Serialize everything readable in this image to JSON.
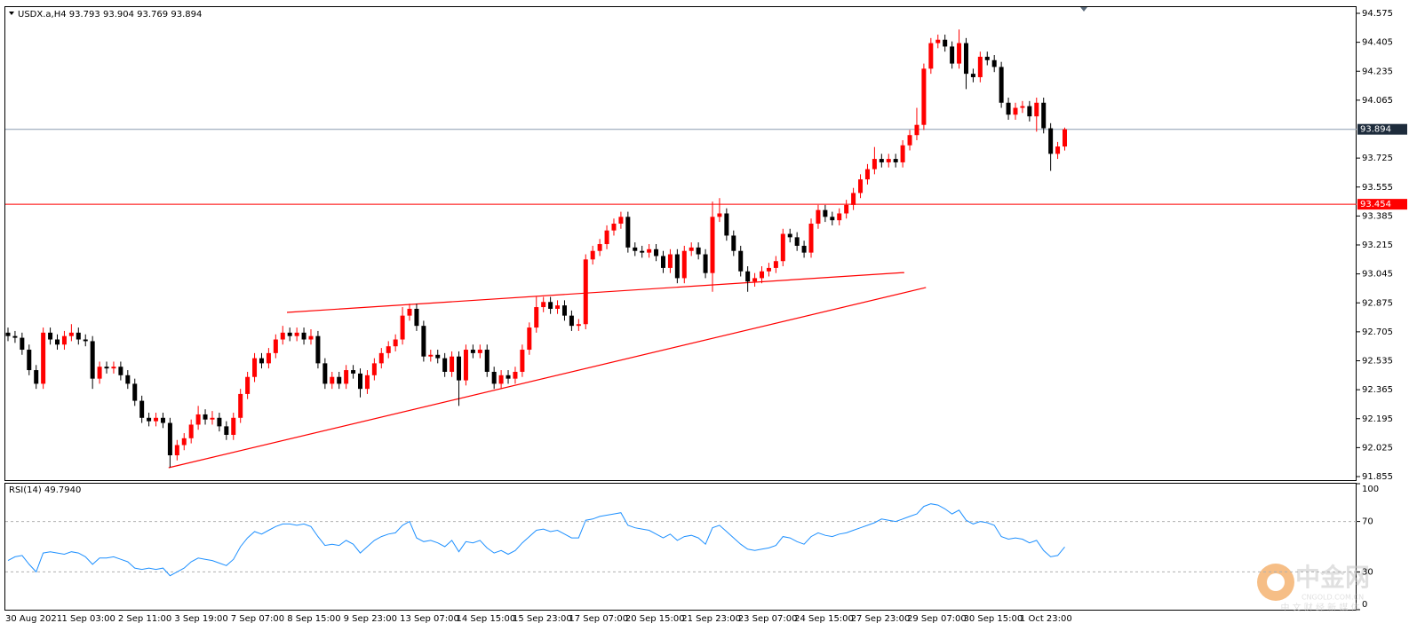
{
  "chart_data": {
    "type": "candlestick",
    "symbol": "USDX.a,H4",
    "categories": [
      "30 Aug 2021",
      null,
      null,
      null,
      null,
      null,
      null,
      null,
      "1 Sep 03:00",
      null,
      null,
      null,
      null,
      null,
      null,
      null,
      "2 Sep 11:00",
      null,
      null,
      null,
      null,
      null,
      null,
      null,
      "3 Sep 19:00",
      null,
      null,
      null,
      null,
      null,
      null,
      null,
      "7 Sep 07:00",
      null,
      null,
      null,
      null,
      null,
      null,
      null,
      "8 Sep 15:00",
      null,
      null,
      null,
      null,
      null,
      null,
      null,
      "9 Sep 23:00",
      null,
      null,
      null,
      null,
      null,
      null,
      null,
      "13 Sep 07:00",
      null,
      null,
      null,
      null,
      null,
      null,
      null,
      "14 Sep 15:00",
      null,
      null,
      null,
      null,
      null,
      null,
      null,
      "15 Sep 23:00",
      null,
      null,
      null,
      null,
      null,
      null,
      null,
      "17 Sep 07:00",
      null,
      null,
      null,
      null,
      null,
      null,
      null,
      "20 Sep 15:00",
      null,
      null,
      null,
      null,
      null,
      null,
      null,
      "21 Sep 23:00",
      null,
      null,
      null,
      null,
      null,
      null,
      null,
      "23 Sep 07:00",
      null,
      null,
      null,
      null,
      null,
      null,
      null,
      "24 Sep 15:00",
      null,
      null,
      null,
      null,
      null,
      null,
      null,
      "27 Sep 23:00",
      null,
      null,
      null,
      null,
      null,
      null,
      null,
      "29 Sep 07:00",
      null,
      null,
      null,
      null,
      null,
      null,
      null,
      "30 Sep 15:00",
      null,
      null,
      null,
      null,
      null,
      null,
      null,
      "1 Oct 23:00",
      null,
      null,
      null,
      null,
      null,
      null
    ],
    "open": [
      92.7,
      92.68,
      92.67,
      92.6,
      92.48,
      92.4,
      92.7,
      92.66,
      92.63,
      92.68,
      92.7,
      92.66,
      92.65,
      92.43,
      92.5,
      92.49,
      92.5,
      92.45,
      92.4,
      92.3,
      92.2,
      92.18,
      92.2,
      92.17,
      91.98,
      92.04,
      92.08,
      92.16,
      92.22,
      92.19,
      92.2,
      92.15,
      92.1,
      92.2,
      92.34,
      92.44,
      92.55,
      92.52,
      92.58,
      92.66,
      92.7,
      92.68,
      92.7,
      92.66,
      92.68,
      92.52,
      92.4,
      92.44,
      92.4,
      92.48,
      92.46,
      92.37,
      92.45,
      92.52,
      92.58,
      92.62,
      92.66,
      92.8,
      92.84,
      92.74,
      92.56,
      92.57,
      92.55,
      92.47,
      92.56,
      92.42,
      92.6,
      92.58,
      92.6,
      92.47,
      92.4,
      92.45,
      92.43,
      92.47,
      92.6,
      92.73,
      92.85,
      92.88,
      92.84,
      92.86,
      92.8,
      92.74,
      92.75,
      93.13,
      93.18,
      93.22,
      93.3,
      93.34,
      93.38,
      93.2,
      93.18,
      93.17,
      93.19,
      93.15,
      93.08,
      93.16,
      93.02,
      93.18,
      93.2,
      93.16,
      93.05,
      93.38,
      93.4,
      93.27,
      93.18,
      93.06,
      93.0,
      93.02,
      93.06,
      93.08,
      93.12,
      93.28,
      93.26,
      93.21,
      93.17,
      93.34,
      93.42,
      93.38,
      93.36,
      93.4,
      93.45,
      93.52,
      93.6,
      93.66,
      93.72,
      93.7,
      93.72,
      93.7,
      93.8,
      93.86,
      93.92,
      94.25,
      94.4,
      94.42,
      94.38,
      94.28,
      94.4,
      94.22,
      94.2,
      94.32,
      94.3,
      94.26,
      94.05,
      93.98,
      94.02,
      94.03,
      93.97,
      94.05,
      93.9,
      93.75,
      93.793
    ],
    "high": [
      92.73,
      92.71,
      92.7,
      92.63,
      92.51,
      92.73,
      92.73,
      92.69,
      92.71,
      92.75,
      92.73,
      92.69,
      92.68,
      92.53,
      92.53,
      92.53,
      92.53,
      92.48,
      92.43,
      92.33,
      92.23,
      92.23,
      92.23,
      92.2,
      92.07,
      92.11,
      92.19,
      92.27,
      92.25,
      92.24,
      92.23,
      92.18,
      92.23,
      92.37,
      92.47,
      92.58,
      92.58,
      92.61,
      92.69,
      92.74,
      92.73,
      92.73,
      92.73,
      92.72,
      92.71,
      92.55,
      92.47,
      92.47,
      92.51,
      92.51,
      92.49,
      92.48,
      92.55,
      92.61,
      92.65,
      92.69,
      92.85,
      92.87,
      92.87,
      92.77,
      92.6,
      92.6,
      92.58,
      92.59,
      92.59,
      92.63,
      92.63,
      92.63,
      92.63,
      92.5,
      92.48,
      92.48,
      92.5,
      92.63,
      92.76,
      92.91,
      92.91,
      92.91,
      92.89,
      92.89,
      92.83,
      92.78,
      93.16,
      93.21,
      93.25,
      93.33,
      93.37,
      93.41,
      93.41,
      93.23,
      93.21,
      93.22,
      93.22,
      93.18,
      93.19,
      93.19,
      93.21,
      93.23,
      93.23,
      93.19,
      93.47,
      93.49,
      93.43,
      93.3,
      93.21,
      93.09,
      93.05,
      93.09,
      93.11,
      93.15,
      93.31,
      93.31,
      93.29,
      93.24,
      93.37,
      93.45,
      93.45,
      93.41,
      93.43,
      93.48,
      93.55,
      93.63,
      93.69,
      93.79,
      93.75,
      93.75,
      93.75,
      93.83,
      93.89,
      94.02,
      94.28,
      94.43,
      94.45,
      94.45,
      94.41,
      94.48,
      94.43,
      94.25,
      94.35,
      94.35,
      94.33,
      94.29,
      94.08,
      94.05,
      94.06,
      94.06,
      94.08,
      94.08,
      93.93,
      93.82,
      93.904
    ],
    "low": [
      92.65,
      92.64,
      92.57,
      92.45,
      92.37,
      92.37,
      92.63,
      92.6,
      92.6,
      92.65,
      92.63,
      92.62,
      92.37,
      92.4,
      92.46,
      92.46,
      92.42,
      92.37,
      92.27,
      92.17,
      92.15,
      92.15,
      92.14,
      91.91,
      91.95,
      92.01,
      92.05,
      92.13,
      92.16,
      92.16,
      92.12,
      92.07,
      92.07,
      92.17,
      92.31,
      92.41,
      92.49,
      92.49,
      92.55,
      92.63,
      92.65,
      92.65,
      92.63,
      92.63,
      92.49,
      92.37,
      92.37,
      92.37,
      92.37,
      92.43,
      92.32,
      92.34,
      92.42,
      92.49,
      92.55,
      92.59,
      92.63,
      92.77,
      92.71,
      92.53,
      92.53,
      92.52,
      92.44,
      92.44,
      92.27,
      92.39,
      92.55,
      92.55,
      92.44,
      92.37,
      92.37,
      92.4,
      92.4,
      92.44,
      92.57,
      92.7,
      92.82,
      92.81,
      92.81,
      92.77,
      92.71,
      92.71,
      92.72,
      93.1,
      93.15,
      93.19,
      93.27,
      93.31,
      93.17,
      93.15,
      93.14,
      93.14,
      93.12,
      93.05,
      93.05,
      92.99,
      92.99,
      93.15,
      93.13,
      93.02,
      92.94,
      93.35,
      93.24,
      93.15,
      93.03,
      92.94,
      92.97,
      92.99,
      93.03,
      93.05,
      93.09,
      93.23,
      93.18,
      93.14,
      93.14,
      93.31,
      93.35,
      93.33,
      93.33,
      93.37,
      93.42,
      93.49,
      93.57,
      93.63,
      93.67,
      93.67,
      93.67,
      93.67,
      93.77,
      93.83,
      93.89,
      94.22,
      94.37,
      94.35,
      94.25,
      94.25,
      94.13,
      94.17,
      94.17,
      94.27,
      94.23,
      94.02,
      93.95,
      93.95,
      93.99,
      93.94,
      93.88,
      93.87,
      93.65,
      93.72,
      93.769
    ],
    "close": [
      92.68,
      92.67,
      92.6,
      92.48,
      92.4,
      92.7,
      92.66,
      92.63,
      92.68,
      92.7,
      92.66,
      92.65,
      92.43,
      92.5,
      92.49,
      92.5,
      92.45,
      92.4,
      92.3,
      92.2,
      92.18,
      92.2,
      92.17,
      91.98,
      92.04,
      92.08,
      92.16,
      92.22,
      92.19,
      92.2,
      92.15,
      92.1,
      92.2,
      92.34,
      92.44,
      92.55,
      92.52,
      92.58,
      92.66,
      92.7,
      92.68,
      92.7,
      92.66,
      92.68,
      92.52,
      92.4,
      92.44,
      92.4,
      92.48,
      92.46,
      92.37,
      92.45,
      92.52,
      92.58,
      92.62,
      92.66,
      92.8,
      92.84,
      92.74,
      92.56,
      92.57,
      92.55,
      92.47,
      92.56,
      92.42,
      92.6,
      92.58,
      92.6,
      92.47,
      92.4,
      92.45,
      92.43,
      92.47,
      92.6,
      92.73,
      92.85,
      92.88,
      92.84,
      92.86,
      92.8,
      92.74,
      92.75,
      93.13,
      93.18,
      93.22,
      93.3,
      93.34,
      93.38,
      93.2,
      93.18,
      93.17,
      93.19,
      93.15,
      93.08,
      93.16,
      93.02,
      93.18,
      93.2,
      93.16,
      93.05,
      93.38,
      93.4,
      93.27,
      93.18,
      93.06,
      93.0,
      93.02,
      93.06,
      93.08,
      93.12,
      93.28,
      93.26,
      93.21,
      93.17,
      93.34,
      93.42,
      93.38,
      93.36,
      93.4,
      93.45,
      93.52,
      93.6,
      93.66,
      93.72,
      93.7,
      93.72,
      93.7,
      93.8,
      93.86,
      93.92,
      94.25,
      94.4,
      94.42,
      94.38,
      94.28,
      94.4,
      94.22,
      94.2,
      94.32,
      94.3,
      94.26,
      94.05,
      93.98,
      94.02,
      94.03,
      93.97,
      94.05,
      93.9,
      93.75,
      93.793,
      93.894
    ],
    "up_color": "#ff0000",
    "down_color": "#000000",
    "ylim": [
      91.855,
      94.575
    ],
    "yticks": [
      94.575,
      94.405,
      94.235,
      94.065,
      93.725,
      93.555,
      93.385,
      93.215,
      93.045,
      92.875,
      92.705,
      92.535,
      92.365,
      92.195,
      92.025,
      91.855
    ],
    "hlines": [
      {
        "value": 93.894,
        "color": "#8a9bb0",
        "label_color": "#1e2c3c"
      },
      {
        "value": 93.454,
        "color": "#ff0000",
        "label_color": "#ff0000"
      }
    ],
    "trendlines": [
      {
        "color": "#ff0000",
        "x": [
          22.8,
          130.3
        ],
        "y": [
          91.907,
          92.965
        ]
      },
      {
        "color": "#ff0000",
        "x": [
          39.6,
          127.2
        ],
        "y": [
          92.819,
          93.053
        ]
      }
    ],
    "indicator": {
      "name": "RSI(14)",
      "value_label": "49.7940",
      "color": "#1e90ff",
      "ylim": [
        0,
        100
      ],
      "yticks": [
        100,
        70,
        30,
        0
      ],
      "values": [
        39,
        42,
        43,
        36,
        30,
        45,
        46,
        45,
        44,
        46,
        45,
        42,
        36,
        41,
        41,
        42,
        40,
        38,
        33,
        32,
        33,
        32,
        33,
        27,
        30,
        33,
        38,
        41,
        40,
        39,
        37,
        35,
        40,
        50,
        57,
        62,
        60,
        63,
        66,
        68,
        68,
        67,
        68,
        66,
        58,
        51,
        52,
        51,
        55,
        52,
        45,
        50,
        55,
        58,
        60,
        61,
        67,
        70,
        57,
        54,
        55,
        53,
        50,
        55,
        46,
        54,
        53,
        55,
        49,
        45,
        47,
        44,
        47,
        53,
        58,
        63,
        64,
        62,
        63,
        60,
        57,
        57,
        71,
        72,
        74,
        75,
        76,
        77,
        67,
        65,
        64,
        63,
        60,
        57,
        60,
        55,
        58,
        59,
        57,
        52,
        65,
        67,
        62,
        57,
        52,
        48,
        47,
        48,
        49,
        51,
        58,
        57,
        54,
        52,
        58,
        61,
        59,
        58,
        60,
        61,
        63,
        65,
        67,
        69,
        72,
        71,
        70,
        72,
        74,
        76,
        82,
        84,
        83,
        80,
        76,
        79,
        71,
        68,
        70,
        69,
        67,
        58,
        56,
        57,
        56,
        53,
        55,
        47,
        42,
        43,
        49.794
      ]
    }
  },
  "watermark": {
    "brand": "中金网",
    "site": "CNGOLD.COM.CN",
    "slogan": "中 文 财 经 新 媒 体"
  }
}
